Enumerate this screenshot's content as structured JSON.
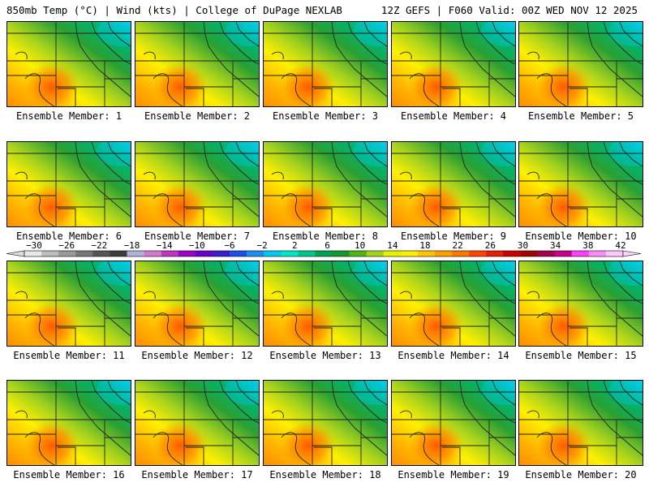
{
  "header": {
    "left": "850mb Temp (°C) | Wind (kts) | College of DuPage NEXLAB",
    "right": "12Z GEFS | F060 Valid: 00Z WED NOV 12 2025"
  },
  "panels": [
    {
      "label": "Ensemble Member: 1"
    },
    {
      "label": "Ensemble Member: 2"
    },
    {
      "label": "Ensemble Member: 3"
    },
    {
      "label": "Ensemble Member: 4"
    },
    {
      "label": "Ensemble Member: 5"
    },
    {
      "label": "Ensemble Member: 6"
    },
    {
      "label": "Ensemble Member: 7"
    },
    {
      "label": "Ensemble Member: 8"
    },
    {
      "label": "Ensemble Member: 9"
    },
    {
      "label": "Ensemble Member: 10"
    },
    {
      "label": "Ensemble Member: 11"
    },
    {
      "label": "Ensemble Member: 12"
    },
    {
      "label": "Ensemble Member: 13"
    },
    {
      "label": "Ensemble Member: 14"
    },
    {
      "label": "Ensemble Member: 15"
    },
    {
      "label": "Ensemble Member: 16"
    },
    {
      "label": "Ensemble Member: 17"
    },
    {
      "label": "Ensemble Member: 18"
    },
    {
      "label": "Ensemble Member: 19"
    },
    {
      "label": "Ensemble Member: 20"
    }
  ],
  "colorbar": {
    "ticks": [
      "−30",
      "−26",
      "−22",
      "−18",
      "−14",
      "−10",
      "−6",
      "−2",
      "2",
      "6",
      "10",
      "14",
      "18",
      "22",
      "26",
      "30",
      "34",
      "38",
      "42"
    ],
    "colors": [
      "#e8e8e8",
      "#bdbdbd",
      "#9a9a9a",
      "#777777",
      "#555555",
      "#3d3d3d",
      "#b0b0d8",
      "#d27ad2",
      "#c038c0",
      "#9d00c8",
      "#6a00c8",
      "#3c1ec8",
      "#1e50e6",
      "#1e8cf0",
      "#00c8f0",
      "#00e6c8",
      "#00c88c",
      "#00a050",
      "#149632",
      "#50b414",
      "#a0d21e",
      "#e6f000",
      "#fff000",
      "#ffc800",
      "#ffa000",
      "#ff7800",
      "#ff4600",
      "#e61e00",
      "#c80000",
      "#a00000",
      "#a00050",
      "#c8008c",
      "#ff40ff",
      "#ff8cff",
      "#ffc8ff"
    ]
  }
}
